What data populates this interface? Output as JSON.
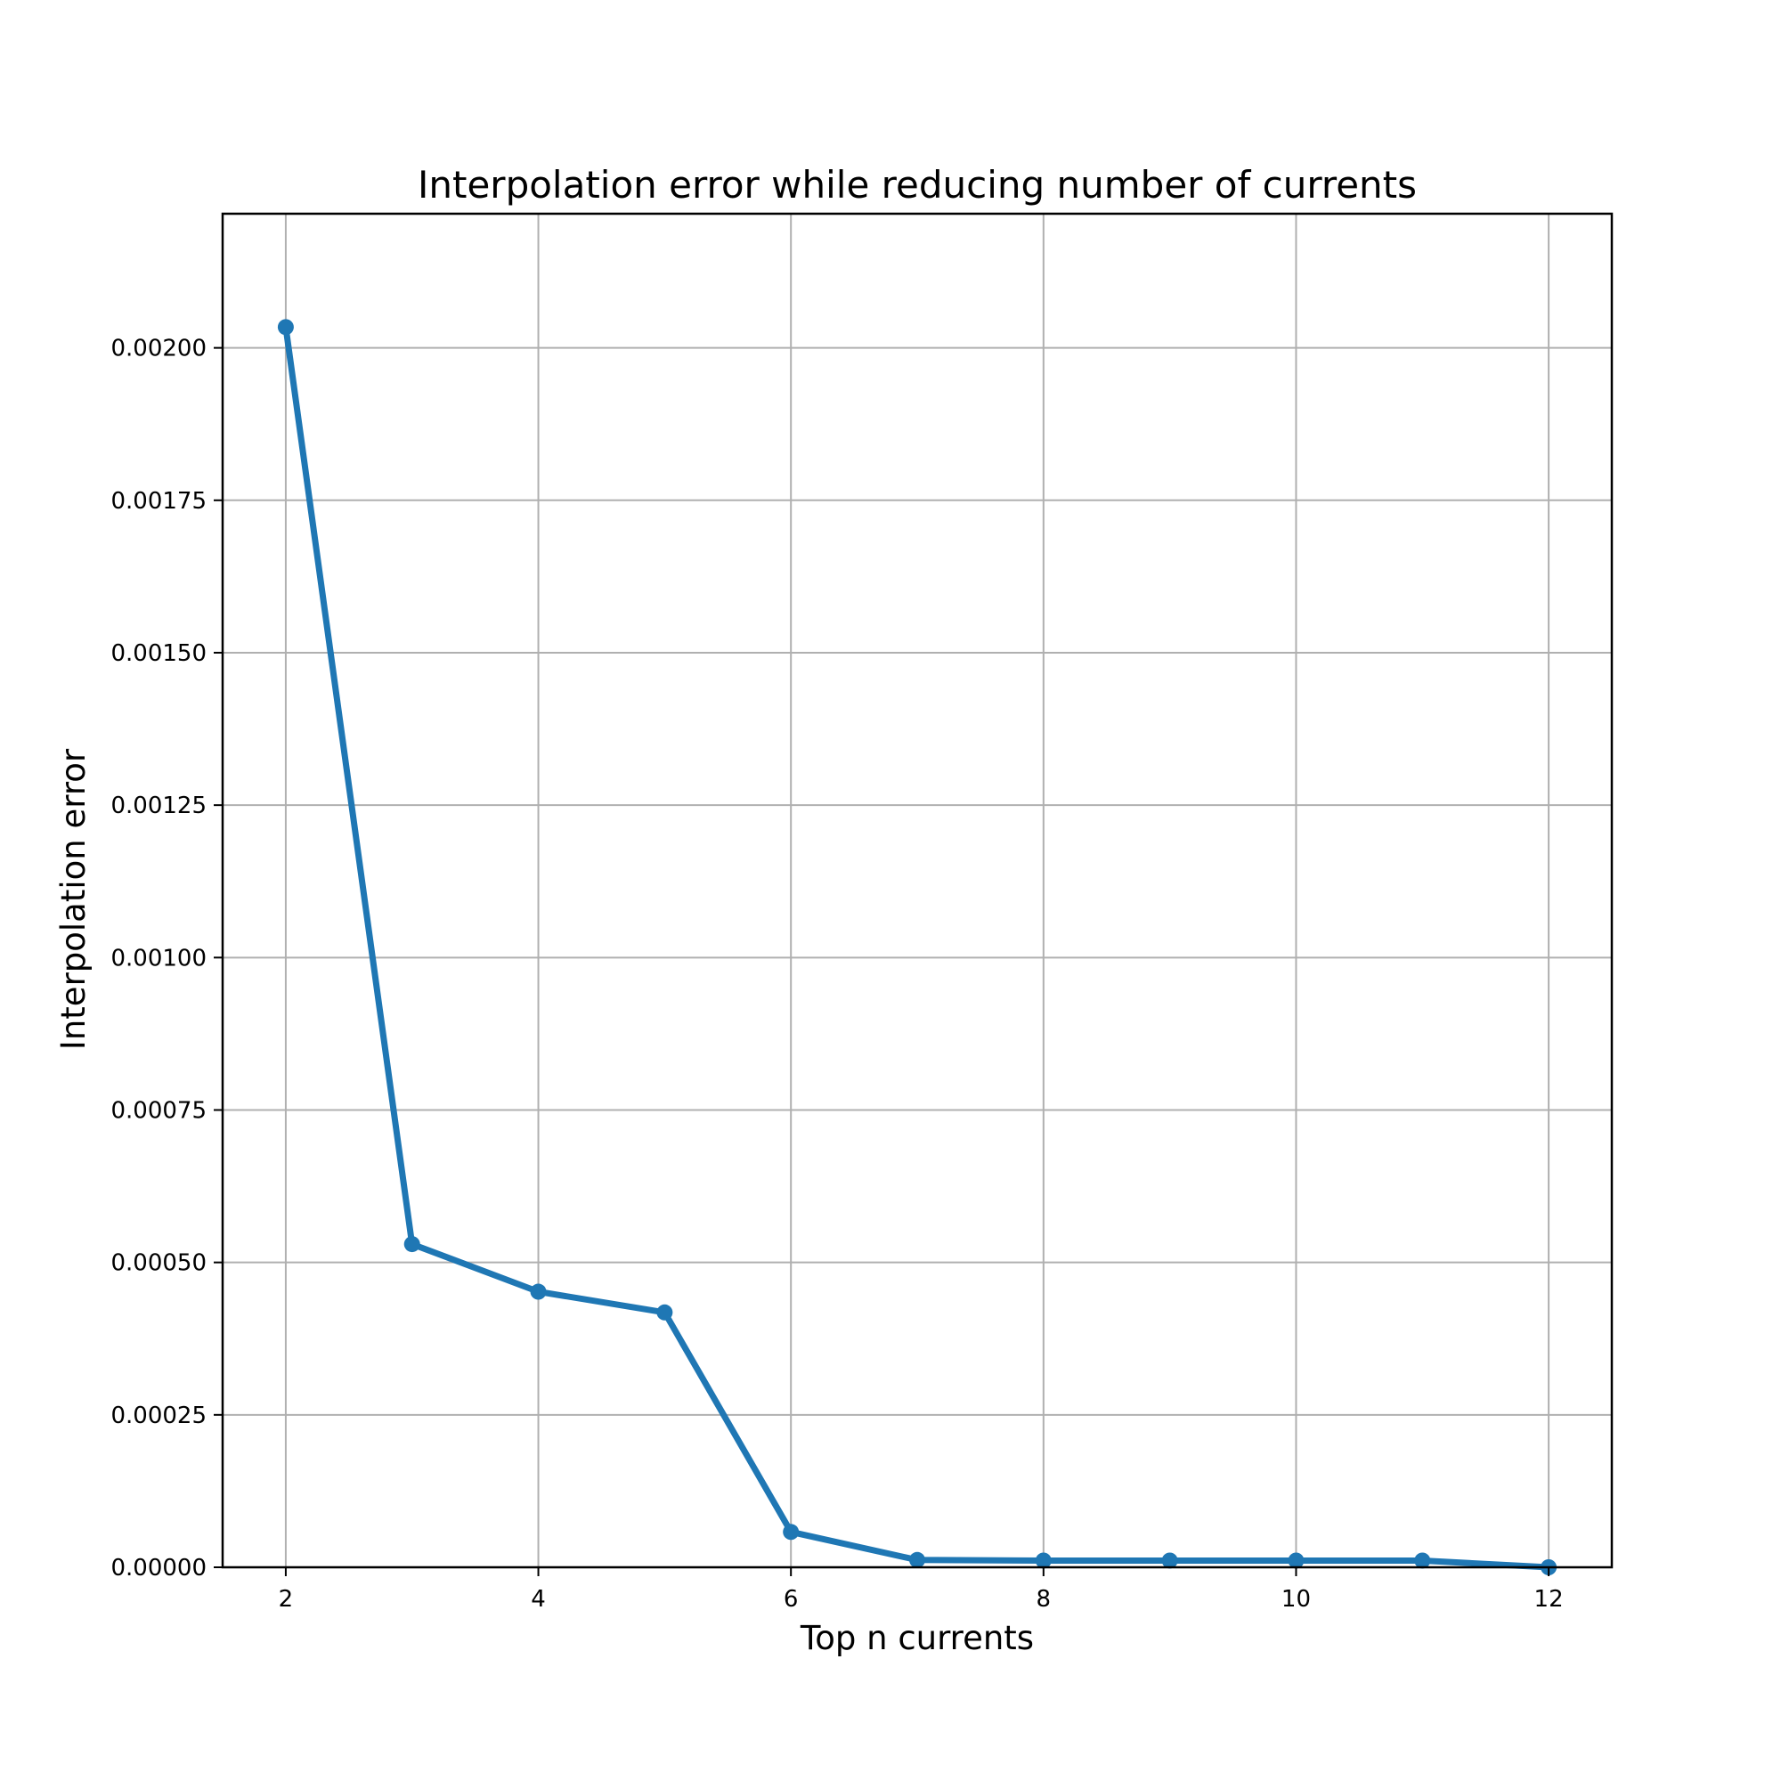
{
  "chart_data": {
    "type": "line",
    "title": "Interpolation error while reducing number of currents",
    "xlabel": "Top n currents",
    "ylabel": "Interpolation error",
    "xlim": [
      1.5,
      12.5
    ],
    "ylim": [
      0,
      0.00222
    ],
    "xticks": [
      2,
      4,
      6,
      8,
      10,
      12
    ],
    "xtick_labels": [
      "2",
      "4",
      "6",
      "8",
      "10",
      "12"
    ],
    "yticks": [
      0,
      0.00025,
      0.0005,
      0.00075,
      0.001,
      0.00125,
      0.0015,
      0.00175,
      0.002
    ],
    "ytick_labels": [
      "0.00000",
      "0.00025",
      "0.00050",
      "0.00075",
      "0.00100",
      "0.00125",
      "0.00150",
      "0.00175",
      "0.00200"
    ],
    "grid": true,
    "series": [
      {
        "color": "#1f77b4",
        "marker": "circle",
        "x": [
          2,
          3,
          4,
          5,
          6,
          7,
          8,
          9,
          10,
          11,
          12
        ],
        "y": [
          0.002034,
          0.00053,
          0.000452,
          0.000418,
          5.8e-05,
          1.2e-05,
          1.1e-05,
          1.1e-05,
          1.1e-05,
          1.1e-05,
          0.0
        ]
      }
    ]
  }
}
